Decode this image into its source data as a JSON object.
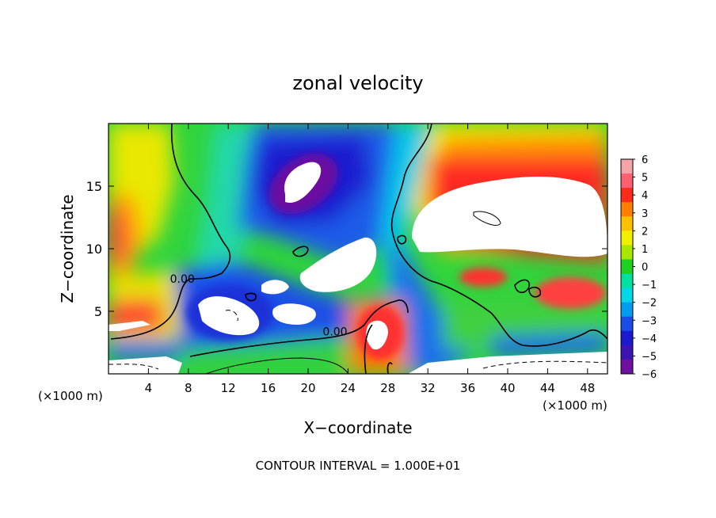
{
  "chart_data": {
    "type": "heatmap",
    "title": "zonal velocity",
    "xlabel": "X−coordinate",
    "ylabel": "Z−coordinate",
    "xlim": [
      0,
      50
    ],
    "ylim": [
      0,
      20
    ],
    "x_ticks": [
      4,
      8,
      12,
      16,
      20,
      24,
      28,
      32,
      36,
      40,
      44,
      48
    ],
    "y_ticks": [
      5,
      10,
      15
    ],
    "x_unit_label_left": "(×1000 m)",
    "x_unit_label_right": "(×1000 m)",
    "colorbar": {
      "min": -6,
      "max": 6,
      "ticks": [
        6,
        5,
        4,
        3,
        2,
        1,
        0,
        -1,
        -2,
        -3,
        -4,
        -5,
        -6
      ],
      "tick_labels": [
        "6",
        "5",
        "4",
        "3",
        "2",
        "1",
        "0",
        "−1",
        "−2",
        "−3",
        "−4",
        "−5",
        "−6"
      ],
      "colors": [
        "#f6a3a8",
        "#ff6070",
        "#ff2a1a",
        "#ff7f00",
        "#ffc000",
        "#f0f000",
        "#a8e800",
        "#20d020",
        "#00e0a0",
        "#00d8e8",
        "#009cf0",
        "#1a4ce8",
        "#1a1ad0",
        "#3c14b4",
        "#7010a0"
      ],
      "out_of_range_color": "#ffffff"
    },
    "contour_labels": [
      {
        "text": "0.00",
        "x": 7.4,
        "z": 7.6
      },
      {
        "text": "0.00",
        "x": 22.7,
        "z": 3.4
      }
    ],
    "contour_interval_text": "CONTOUR INTERVAL = 1.000E+01"
  }
}
